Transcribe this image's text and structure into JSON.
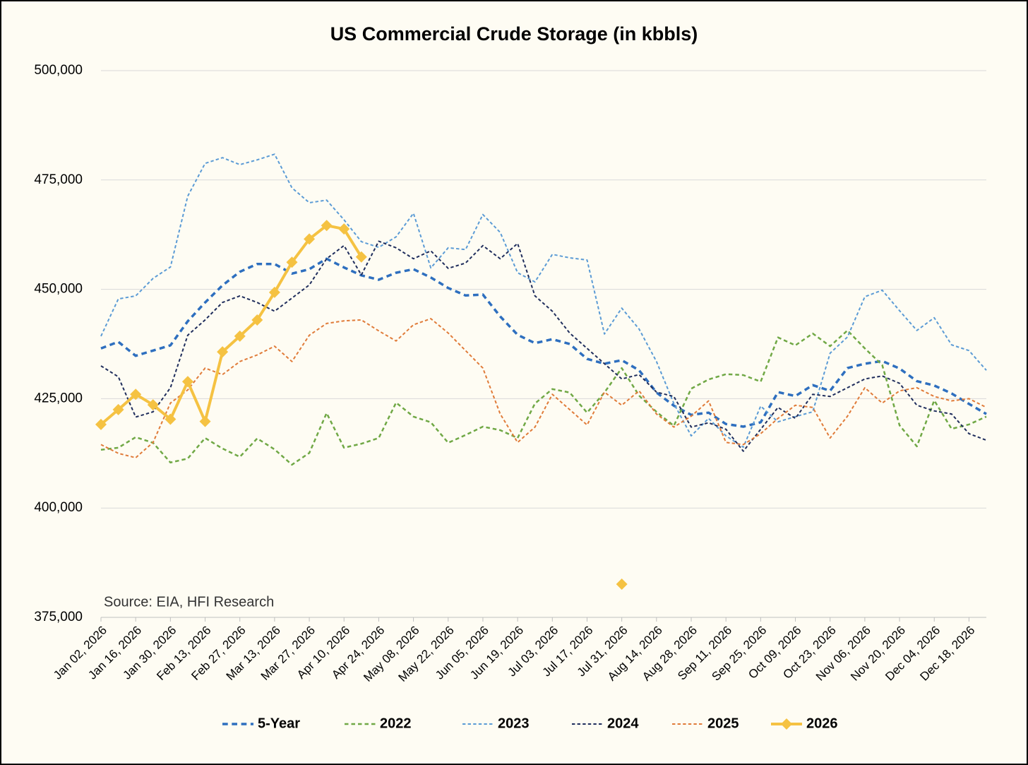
{
  "chart_data": {
    "type": "line",
    "title": "US Commercial Crude Storage (in kbbls)",
    "annotation": "Source: EIA, HFI Research",
    "categories": [
      "Jan 02, 2026",
      null,
      "Jan 16, 2026",
      null,
      "Jan 30, 2026",
      null,
      "Feb 13, 2026",
      null,
      "Feb 27, 2026",
      null,
      "Mar 13, 2026",
      null,
      "Mar 27, 2026",
      null,
      "Apr 10, 2026",
      null,
      "Apr 24, 2026",
      null,
      "May 08, 2026",
      null,
      "May 22, 2026",
      null,
      "Jun 05, 2026",
      null,
      "Jun 19, 2026",
      null,
      "Jul 03, 2026",
      null,
      "Jul 17, 2026",
      null,
      "Jul 31, 2026",
      null,
      "Aug 14, 2026",
      null,
      "Aug 28, 2026",
      null,
      "Sep 11, 2026",
      null,
      "Sep 25, 2026",
      null,
      "Oct 09, 2026",
      null,
      "Oct 23, 2026",
      null,
      "Nov 06, 2026",
      null,
      "Nov 20, 2026",
      null,
      "Dec 04, 2026",
      null,
      "Dec 18, 2026",
      null
    ],
    "ylim": [
      375000,
      500000
    ],
    "yticks": [
      {
        "value": 375000,
        "label": "375,000"
      },
      {
        "value": 400000,
        "label": "400,000"
      },
      {
        "value": 425000,
        "label": "425,000"
      },
      {
        "value": 450000,
        "label": "450,000"
      },
      {
        "value": 475000,
        "label": "475,000"
      },
      {
        "value": 500000,
        "label": "500,000"
      }
    ],
    "grid": true,
    "legend": "bottom",
    "series": [
      {
        "name": "5-Year",
        "color": "#2e6fbf",
        "style": "dashed",
        "width": 3.5,
        "values": [
          436500,
          438000,
          434800,
          436000,
          437200,
          442700,
          447000,
          450900,
          454000,
          455800,
          455800,
          453600,
          454600,
          457000,
          455000,
          453200,
          452200,
          453800,
          454600,
          452700,
          450300,
          448600,
          448800,
          443800,
          439600,
          437700,
          438600,
          437500,
          434100,
          433000,
          433800,
          431500,
          426400,
          423400,
          421300,
          421800,
          419200,
          418600,
          419600,
          426500,
          425600,
          428100,
          426800,
          432000,
          433000,
          433600,
          431900,
          429000,
          428000,
          426200,
          423800,
          421500
        ]
      },
      {
        "name": "2022",
        "color": "#70a845",
        "style": "dashed",
        "width": 2.5,
        "values": [
          413300,
          413800,
          416200,
          414900,
          410400,
          411300,
          416000,
          413600,
          411700,
          415900,
          413400,
          409900,
          412600,
          421700,
          413800,
          414700,
          416000,
          424100,
          420900,
          419600,
          414900,
          416700,
          418600,
          417800,
          416000,
          423900,
          427200,
          426400,
          421800,
          426400,
          432000,
          425700,
          422000,
          418800,
          427300,
          429400,
          430600,
          430400,
          428900,
          439000,
          437200,
          439900,
          437000,
          440600,
          436500,
          432700,
          418900,
          414100,
          424600,
          418100,
          419100,
          420900
        ]
      },
      {
        "name": "2023",
        "color": "#5b9bd5",
        "style": "dashed",
        "width": 2,
        "values": [
          439300,
          447800,
          448500,
          452500,
          455100,
          471300,
          478800,
          480100,
          478500,
          479600,
          480900,
          473200,
          469800,
          470400,
          465900,
          460900,
          459600,
          462000,
          467400,
          454900,
          459500,
          459100,
          467100,
          463000,
          453800,
          451700,
          458000,
          457200,
          456700,
          439800,
          445700,
          440900,
          433500,
          423900,
          416500,
          420500,
          416500,
          413900,
          423300,
          419700,
          420900,
          422000,
          435400,
          439100,
          448300,
          449800,
          445100,
          440600,
          443500,
          437300,
          436000,
          431500
        ]
      },
      {
        "name": "2024",
        "color": "#1f2d5c",
        "style": "dashed",
        "width": 2,
        "values": [
          432500,
          430000,
          420800,
          422000,
          427500,
          439500,
          443000,
          447000,
          448500,
          447000,
          445000,
          448000,
          451000,
          457000,
          460000,
          453300,
          461000,
          459500,
          457000,
          458800,
          454800,
          456000,
          460000,
          457000,
          460500,
          448500,
          445000,
          440000,
          436500,
          433000,
          429500,
          430500,
          426500,
          425500,
          418500,
          419500,
          418000,
          413000,
          418000,
          423000,
          420500,
          426000,
          425500,
          427500,
          429500,
          430200,
          428500,
          423500,
          422200,
          421500,
          417000,
          415500
        ]
      },
      {
        "name": "2025",
        "color": "#e07b39",
        "style": "dashed",
        "width": 2,
        "values": [
          414500,
          412500,
          411500,
          415000,
          424000,
          427000,
          432000,
          430500,
          433500,
          435000,
          437000,
          433500,
          439500,
          442200,
          442800,
          443000,
          440500,
          438200,
          441900,
          443300,
          440000,
          436000,
          432000,
          421500,
          415000,
          418500,
          426000,
          422500,
          419000,
          426500,
          423500,
          426800,
          421500,
          418500,
          421000,
          424500,
          415000,
          414500,
          417000,
          420500,
          423500,
          423000,
          416000,
          421000,
          427500,
          424000,
          426800,
          427500,
          425500,
          424500,
          425000,
          423000
        ]
      },
      {
        "name": "2026",
        "color": "#f5c242",
        "style": "solid",
        "marker": "diamond",
        "width": 4,
        "values": [
          419100,
          422500,
          426000,
          423600,
          420300,
          428900,
          419800,
          435700,
          439300,
          443000,
          449300,
          456200,
          461500,
          464600,
          463800,
          457400,
          null,
          null,
          null,
          null,
          null,
          null,
          null,
          null,
          null,
          null,
          null,
          null,
          null,
          null,
          382600,
          null,
          null,
          null,
          null,
          null,
          null,
          null,
          null,
          null,
          null,
          null,
          null,
          null,
          null,
          null,
          null,
          null,
          null,
          null,
          null,
          null
        ]
      }
    ]
  }
}
